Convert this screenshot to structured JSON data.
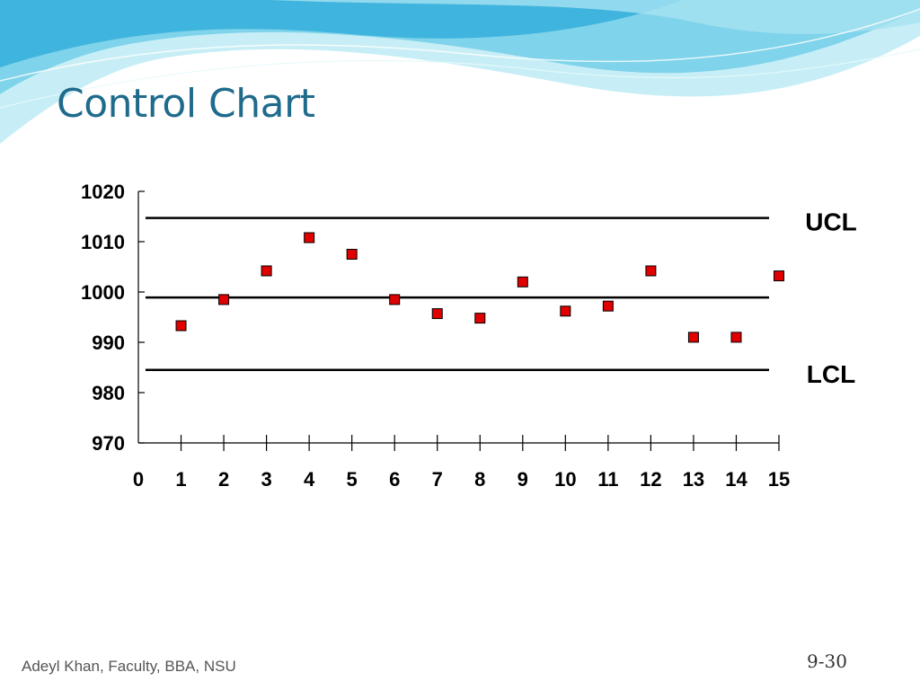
{
  "slide": {
    "title": "Control Chart",
    "footer": "Adeyl Khan, Faculty, BBA, NSU",
    "page_number": "9-30"
  },
  "colors": {
    "title": "#1f6b8c",
    "marker_fill": "#e00000",
    "wave_dark": "#29a9d8",
    "wave_light": "#b8ecf3"
  },
  "chart_data": {
    "type": "scatter",
    "title": "",
    "xlabel": "",
    "ylabel": "",
    "xlim": [
      0,
      15
    ],
    "ylim": [
      970,
      1020
    ],
    "x_ticks": [
      0,
      1,
      2,
      3,
      4,
      5,
      6,
      7,
      8,
      9,
      10,
      11,
      12,
      13,
      14,
      15
    ],
    "y_ticks": [
      970,
      980,
      990,
      1000,
      1010,
      1020
    ],
    "grid": false,
    "series": [
      {
        "x": [
          1,
          2,
          3,
          4,
          5,
          6,
          7,
          8,
          9,
          10,
          11,
          12,
          13,
          14,
          15
        ],
        "y": [
          993.3,
          998.5,
          1004.2,
          1010.8,
          1007.5,
          998.5,
          995.7,
          994.8,
          1002,
          996.2,
          997.2,
          1004.2,
          991,
          991,
          1003.2
        ]
      }
    ],
    "reference_lines": [
      {
        "label": "UCL",
        "y": 1014.7
      },
      {
        "label": "",
        "y": 998.9
      },
      {
        "label": "LCL",
        "y": 984.5
      }
    ]
  }
}
